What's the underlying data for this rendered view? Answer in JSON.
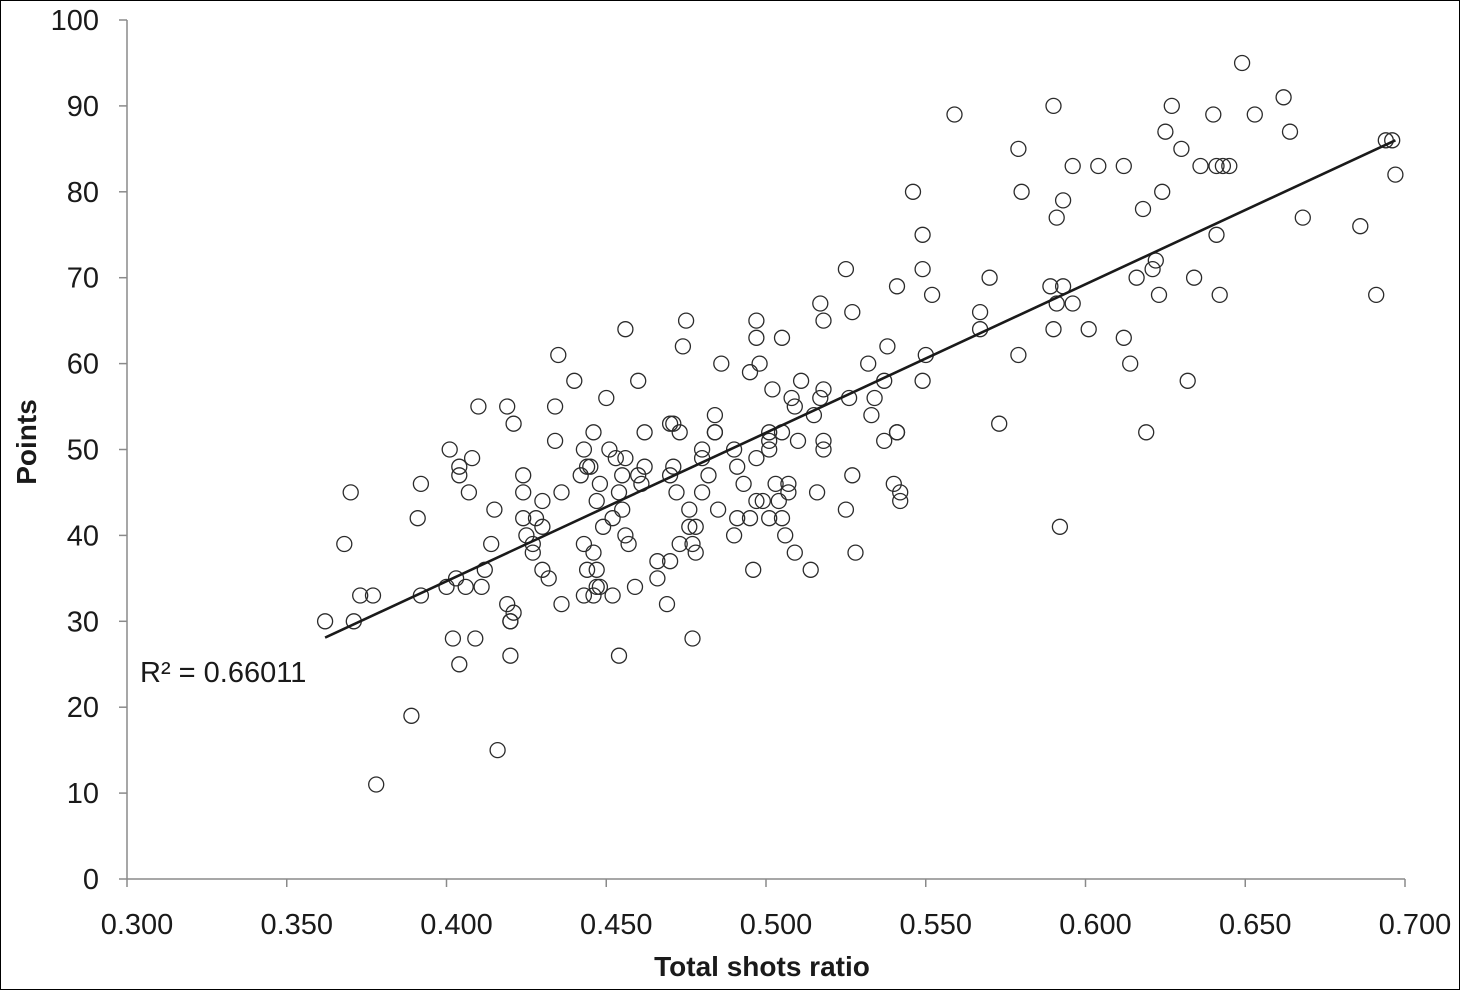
{
  "chart_data": {
    "type": "scatter",
    "xlabel": "Total shots ratio",
    "ylabel": "Points",
    "xlim": [
      0.3,
      0.7
    ],
    "ylim": [
      0,
      100
    ],
    "x_ticks": [
      "0.300",
      "0.350",
      "0.400",
      "0.450",
      "0.500",
      "0.550",
      "0.600",
      "0.650",
      "0.700"
    ],
    "y_ticks": [
      "0",
      "10",
      "20",
      "30",
      "40",
      "50",
      "60",
      "70",
      "80",
      "90",
      "100"
    ],
    "grid": false,
    "legend": "none",
    "marker": "open-circle",
    "annotation": "R² = 0.66011",
    "trendline": {
      "type": "linear",
      "x": [
        0.362,
        0.697
      ],
      "y": [
        28.1,
        86.0
      ]
    },
    "colors": {
      "marker": "#2b2b2b",
      "trendline": "#1a1a1a",
      "axis": "#8a8a8a"
    },
    "series": [
      {
        "points": [
          [
            0.362,
            30
          ],
          [
            0.368,
            39
          ],
          [
            0.37,
            45
          ],
          [
            0.371,
            30
          ],
          [
            0.373,
            33
          ],
          [
            0.377,
            33
          ],
          [
            0.378,
            11
          ],
          [
            0.389,
            19
          ],
          [
            0.391,
            42
          ],
          [
            0.392,
            33
          ],
          [
            0.392,
            46
          ],
          [
            0.4,
            34
          ],
          [
            0.401,
            50
          ],
          [
            0.402,
            28
          ],
          [
            0.403,
            35
          ],
          [
            0.404,
            48
          ],
          [
            0.404,
            47
          ],
          [
            0.404,
            25
          ],
          [
            0.406,
            34
          ],
          [
            0.407,
            45
          ],
          [
            0.408,
            49
          ],
          [
            0.409,
            28
          ],
          [
            0.41,
            55
          ],
          [
            0.411,
            34
          ],
          [
            0.412,
            36
          ],
          [
            0.414,
            39
          ],
          [
            0.415,
            43
          ],
          [
            0.416,
            15
          ],
          [
            0.419,
            55
          ],
          [
            0.419,
            32
          ],
          [
            0.42,
            30
          ],
          [
            0.42,
            30
          ],
          [
            0.42,
            26
          ],
          [
            0.421,
            53
          ],
          [
            0.421,
            31
          ],
          [
            0.424,
            47
          ],
          [
            0.424,
            45
          ],
          [
            0.424,
            42
          ],
          [
            0.425,
            40
          ],
          [
            0.427,
            39
          ],
          [
            0.427,
            38
          ],
          [
            0.428,
            42
          ],
          [
            0.43,
            36
          ],
          [
            0.43,
            44
          ],
          [
            0.43,
            41
          ],
          [
            0.432,
            35
          ],
          [
            0.434,
            51
          ],
          [
            0.434,
            55
          ],
          [
            0.435,
            61
          ],
          [
            0.436,
            45
          ],
          [
            0.436,
            32
          ],
          [
            0.44,
            58
          ],
          [
            0.442,
            47
          ],
          [
            0.443,
            33
          ],
          [
            0.443,
            39
          ],
          [
            0.443,
            50
          ],
          [
            0.444,
            48
          ],
          [
            0.444,
            36
          ],
          [
            0.445,
            48
          ],
          [
            0.446,
            52
          ],
          [
            0.446,
            38
          ],
          [
            0.446,
            33
          ],
          [
            0.447,
            34
          ],
          [
            0.447,
            44
          ],
          [
            0.447,
            36
          ],
          [
            0.448,
            46
          ],
          [
            0.448,
            34
          ],
          [
            0.449,
            41
          ],
          [
            0.45,
            56
          ],
          [
            0.451,
            50
          ],
          [
            0.452,
            42
          ],
          [
            0.452,
            33
          ],
          [
            0.453,
            49
          ],
          [
            0.454,
            26
          ],
          [
            0.454,
            45
          ],
          [
            0.455,
            47
          ],
          [
            0.455,
            43
          ],
          [
            0.456,
            64
          ],
          [
            0.456,
            49
          ],
          [
            0.456,
            40
          ],
          [
            0.457,
            39
          ],
          [
            0.459,
            34
          ],
          [
            0.46,
            47
          ],
          [
            0.46,
            58
          ],
          [
            0.461,
            46
          ],
          [
            0.462,
            52
          ],
          [
            0.462,
            48
          ],
          [
            0.466,
            37
          ],
          [
            0.466,
            35
          ],
          [
            0.469,
            32
          ],
          [
            0.47,
            37
          ],
          [
            0.47,
            47
          ],
          [
            0.47,
            53
          ],
          [
            0.471,
            53
          ],
          [
            0.471,
            48
          ],
          [
            0.472,
            45
          ],
          [
            0.473,
            52
          ],
          [
            0.473,
            39
          ],
          [
            0.474,
            62
          ],
          [
            0.475,
            65
          ],
          [
            0.476,
            43
          ],
          [
            0.476,
            41
          ],
          [
            0.477,
            28
          ],
          [
            0.477,
            39
          ],
          [
            0.478,
            41
          ],
          [
            0.478,
            38
          ],
          [
            0.48,
            50
          ],
          [
            0.48,
            49
          ],
          [
            0.48,
            45
          ],
          [
            0.482,
            47
          ],
          [
            0.484,
            54
          ],
          [
            0.484,
            52
          ],
          [
            0.484,
            52
          ],
          [
            0.485,
            43
          ],
          [
            0.486,
            60
          ],
          [
            0.49,
            50
          ],
          [
            0.49,
            40
          ],
          [
            0.491,
            48
          ],
          [
            0.491,
            42
          ],
          [
            0.493,
            46
          ],
          [
            0.495,
            59
          ],
          [
            0.495,
            42
          ],
          [
            0.496,
            36
          ],
          [
            0.497,
            65
          ],
          [
            0.497,
            63
          ],
          [
            0.497,
            49
          ],
          [
            0.497,
            44
          ],
          [
            0.498,
            60
          ],
          [
            0.499,
            44
          ],
          [
            0.501,
            52
          ],
          [
            0.501,
            51
          ],
          [
            0.501,
            50
          ],
          [
            0.501,
            42
          ],
          [
            0.502,
            57
          ],
          [
            0.503,
            46
          ],
          [
            0.504,
            44
          ],
          [
            0.505,
            63
          ],
          [
            0.505,
            52
          ],
          [
            0.505,
            42
          ],
          [
            0.506,
            40
          ],
          [
            0.507,
            45
          ],
          [
            0.507,
            46
          ],
          [
            0.508,
            56
          ],
          [
            0.509,
            55
          ],
          [
            0.509,
            38
          ],
          [
            0.51,
            51
          ],
          [
            0.511,
            58
          ],
          [
            0.514,
            36
          ],
          [
            0.515,
            54
          ],
          [
            0.516,
            45
          ],
          [
            0.517,
            67
          ],
          [
            0.517,
            56
          ],
          [
            0.518,
            57
          ],
          [
            0.518,
            65
          ],
          [
            0.518,
            51
          ],
          [
            0.518,
            50
          ],
          [
            0.525,
            71
          ],
          [
            0.525,
            43
          ],
          [
            0.526,
            56
          ],
          [
            0.527,
            66
          ],
          [
            0.527,
            47
          ],
          [
            0.528,
            38
          ],
          [
            0.532,
            60
          ],
          [
            0.533,
            54
          ],
          [
            0.534,
            56
          ],
          [
            0.537,
            58
          ],
          [
            0.537,
            51
          ],
          [
            0.538,
            62
          ],
          [
            0.54,
            46
          ],
          [
            0.541,
            52
          ],
          [
            0.541,
            52
          ],
          [
            0.541,
            69
          ],
          [
            0.542,
            45
          ],
          [
            0.542,
            44
          ],
          [
            0.546,
            80
          ],
          [
            0.549,
            75
          ],
          [
            0.549,
            71
          ],
          [
            0.549,
            58
          ],
          [
            0.55,
            61
          ],
          [
            0.552,
            68
          ],
          [
            0.559,
            89
          ],
          [
            0.567,
            66
          ],
          [
            0.567,
            64
          ],
          [
            0.57,
            70
          ],
          [
            0.573,
            53
          ],
          [
            0.579,
            85
          ],
          [
            0.579,
            61
          ],
          [
            0.58,
            80
          ],
          [
            0.589,
            69
          ],
          [
            0.59,
            64
          ],
          [
            0.59,
            90
          ],
          [
            0.591,
            67
          ],
          [
            0.591,
            77
          ],
          [
            0.592,
            41
          ],
          [
            0.593,
            79
          ],
          [
            0.593,
            69
          ],
          [
            0.596,
            83
          ],
          [
            0.596,
            67
          ],
          [
            0.601,
            64
          ],
          [
            0.604,
            83
          ],
          [
            0.612,
            83
          ],
          [
            0.612,
            63
          ],
          [
            0.614,
            60
          ],
          [
            0.616,
            70
          ],
          [
            0.618,
            78
          ],
          [
            0.619,
            52
          ],
          [
            0.621,
            71
          ],
          [
            0.622,
            72
          ],
          [
            0.623,
            68
          ],
          [
            0.624,
            80
          ],
          [
            0.625,
            87
          ],
          [
            0.627,
            90
          ],
          [
            0.63,
            85
          ],
          [
            0.632,
            58
          ],
          [
            0.634,
            70
          ],
          [
            0.636,
            83
          ],
          [
            0.64,
            89
          ],
          [
            0.641,
            83
          ],
          [
            0.641,
            75
          ],
          [
            0.642,
            68
          ],
          [
            0.643,
            83
          ],
          [
            0.645,
            83
          ],
          [
            0.649,
            95
          ],
          [
            0.653,
            89
          ],
          [
            0.662,
            91
          ],
          [
            0.664,
            87
          ],
          [
            0.668,
            77
          ],
          [
            0.686,
            76
          ],
          [
            0.691,
            68
          ],
          [
            0.694,
            86
          ],
          [
            0.696,
            86
          ],
          [
            0.697,
            82
          ]
        ]
      }
    ]
  }
}
